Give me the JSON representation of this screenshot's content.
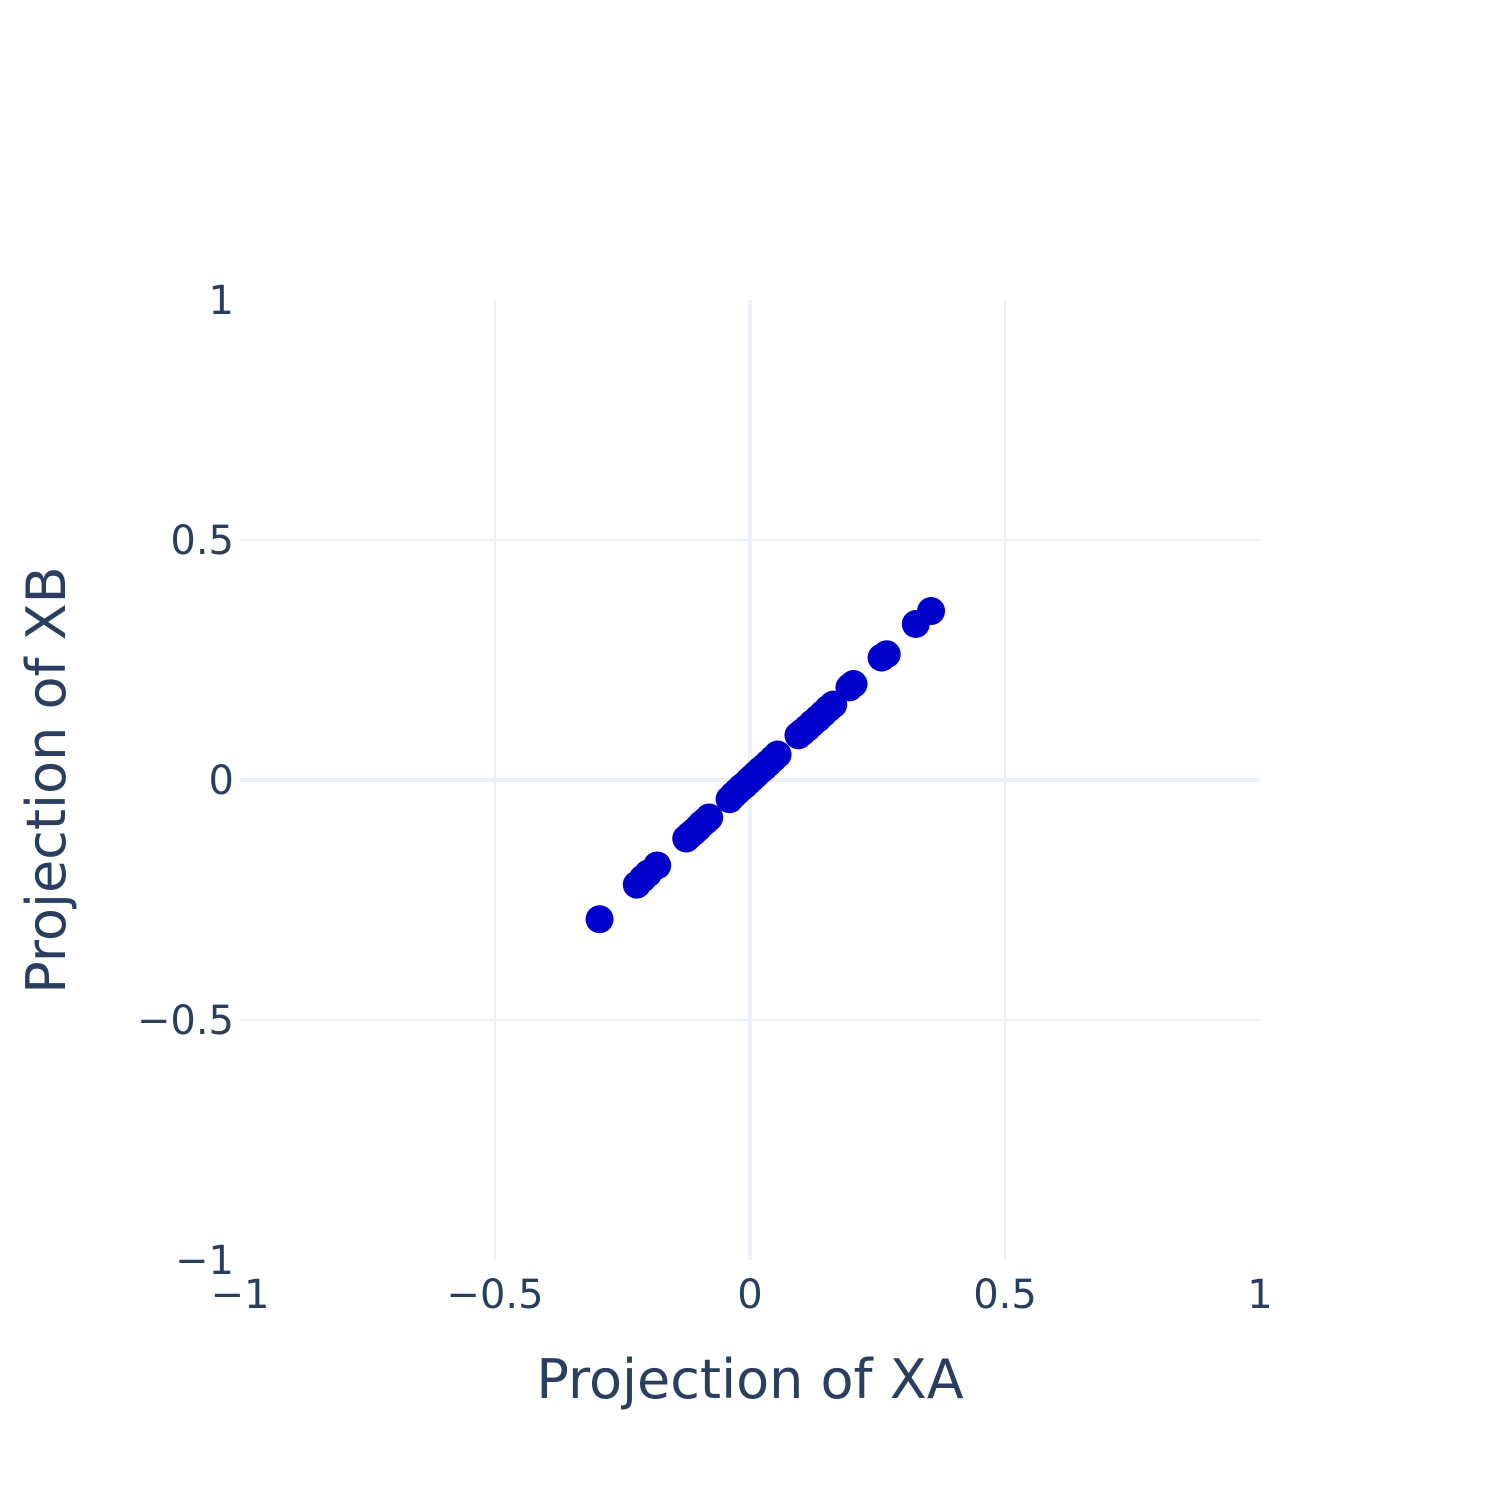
{
  "colors": {
    "marker": "#0000cc",
    "grid": "#ebf0f8",
    "zero_line": "#ebf0f8",
    "text": "#2a3f5f",
    "background": "#ffffff"
  },
  "chart_data": {
    "type": "scatter",
    "title": "",
    "xlabel": "Projection of XA",
    "ylabel": "Projection of XB",
    "xlim": [
      -1,
      1
    ],
    "ylim": [
      -1,
      1
    ],
    "grid": true,
    "x_ticks": [
      -1,
      -0.5,
      0,
      0.5,
      1
    ],
    "y_ticks": [
      -1,
      -0.5,
      0,
      0.5,
      1
    ],
    "x_tick_labels": [
      "−1",
      "−0.5",
      "0",
      "0.5",
      "1"
    ],
    "y_tick_labels": [
      "−1",
      "−0.5",
      "0",
      "0.5",
      "1"
    ],
    "series": [
      {
        "points": [
          [
            -0.295,
            -0.29
          ],
          [
            -0.222,
            -0.218
          ],
          [
            -0.21,
            -0.205
          ],
          [
            -0.2,
            -0.195
          ],
          [
            -0.182,
            -0.178
          ],
          [
            -0.125,
            -0.122
          ],
          [
            -0.118,
            -0.115
          ],
          [
            -0.11,
            -0.108
          ],
          [
            -0.102,
            -0.1
          ],
          [
            -0.095,
            -0.092
          ],
          [
            -0.087,
            -0.085
          ],
          [
            -0.08,
            -0.078
          ],
          [
            -0.04,
            -0.04
          ],
          [
            -0.032,
            -0.031
          ],
          [
            -0.025,
            -0.024
          ],
          [
            -0.017,
            -0.016
          ],
          [
            -0.01,
            -0.01
          ],
          [
            -0.003,
            -0.003
          ],
          [
            0.004,
            0.004
          ],
          [
            0.012,
            0.012
          ],
          [
            0.02,
            0.02
          ],
          [
            0.028,
            0.027
          ],
          [
            0.036,
            0.035
          ],
          [
            0.045,
            0.044
          ],
          [
            0.054,
            0.053
          ],
          [
            0.095,
            0.093
          ],
          [
            0.103,
            0.1
          ],
          [
            0.112,
            0.108
          ],
          [
            0.122,
            0.118
          ],
          [
            0.133,
            0.128
          ],
          [
            0.143,
            0.138
          ],
          [
            0.153,
            0.148
          ],
          [
            0.163,
            0.157
          ],
          [
            0.195,
            0.193
          ],
          [
            0.203,
            0.2
          ],
          [
            0.258,
            0.255
          ],
          [
            0.268,
            0.262
          ],
          [
            0.325,
            0.325
          ],
          [
            0.355,
            0.352
          ]
        ]
      }
    ]
  }
}
